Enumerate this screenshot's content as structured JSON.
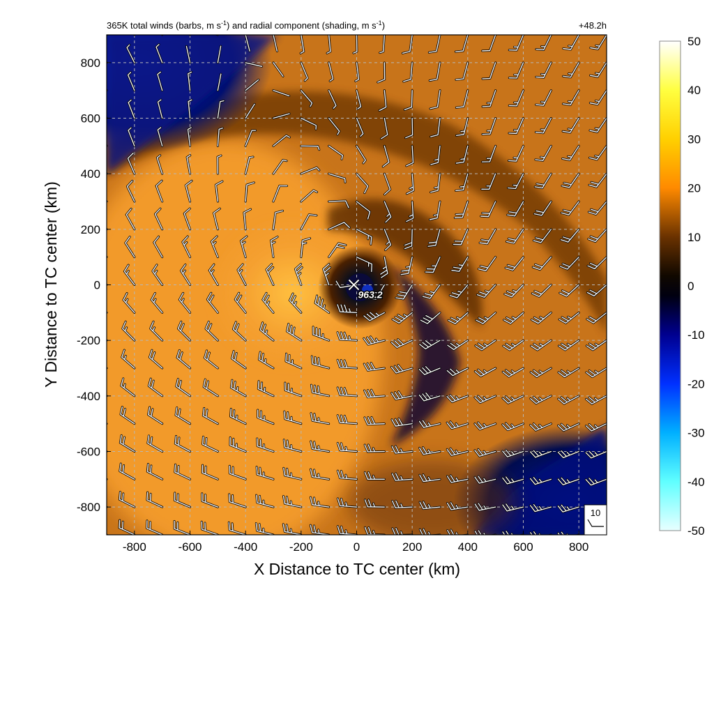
{
  "title_left": "365K total winds (barbs, m s",
  "title_left_sup1": "-1",
  "title_left_mid": ") and radial component (shading, m s",
  "title_left_sup2": "-1",
  "title_left_end": ")",
  "title_right": "+48.2h",
  "colors": {
    "frame": "#000000",
    "grid": "#b8b8b8",
    "barb_fill": "#ffffff",
    "barb_shadow": "#000000",
    "shading_scale": [
      "#e0ffff",
      "#00ffff",
      "#00aaff",
      "#0000ff",
      "#000033",
      "#000000",
      "#402000",
      "#a05000",
      "#ff8800",
      "#ffaa00",
      "#ffff00",
      "#ffffff"
    ]
  },
  "chart_data": {
    "type": "heatmap",
    "title": "365K total winds (barbs, m s-1) and radial component (shading, m s-1)",
    "xlabel": "X Distance to TC center (km)",
    "ylabel": "Y Distance to TC center (km)",
    "xlim": [
      -900,
      900
    ],
    "ylim": [
      -900,
      900
    ],
    "x_ticks": [
      -800,
      -600,
      -400,
      -200,
      0,
      200,
      400,
      600,
      800
    ],
    "y_ticks": [
      -800,
      -600,
      -400,
      -200,
      0,
      200,
      400,
      600,
      800
    ],
    "grid": true,
    "colorbar": {
      "min": -50,
      "max": 50,
      "ticks": [
        50,
        40,
        30,
        20,
        10,
        0,
        -10,
        -20,
        -30,
        -40,
        -50
      ],
      "placement": "right"
    },
    "center_marker": {
      "x": -10,
      "y": 0,
      "label": "963.2"
    },
    "time_label": "+48.2h",
    "barb_spacing_km": 100,
    "reference_barb": {
      "label": "10",
      "speed": 10
    },
    "fields": [
      {
        "name": "radial wind component",
        "description": "shading; inflow (negative) toward NW corner and SE, outflow (positive) broad orange band on western side"
      },
      {
        "name": "total wind",
        "description": "barbs on 100 km grid, cyclonic circulation around center"
      }
    ]
  }
}
